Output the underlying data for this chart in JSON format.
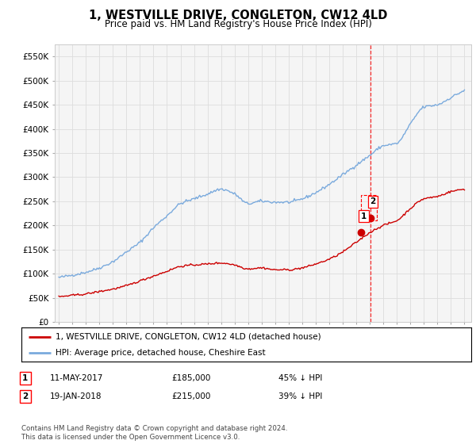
{
  "title": "1, WESTVILLE DRIVE, CONGLETON, CW12 4LD",
  "subtitle": "Price paid vs. HM Land Registry's House Price Index (HPI)",
  "ylim": [
    0,
    575000
  ],
  "yticks": [
    0,
    50000,
    100000,
    150000,
    200000,
    250000,
    300000,
    350000,
    400000,
    450000,
    500000,
    550000
  ],
  "ytick_labels": [
    "£0",
    "£50K",
    "£100K",
    "£150K",
    "£200K",
    "£250K",
    "£300K",
    "£350K",
    "£400K",
    "£450K",
    "£500K",
    "£550K"
  ],
  "background_color": "#ffffff",
  "plot_bg_color": "#f5f5f5",
  "grid_color": "#dddddd",
  "red_line_color": "#cc0000",
  "blue_line_color": "#7aaadd",
  "legend_label_red": "1, WESTVILLE DRIVE, CONGLETON, CW12 4LD (detached house)",
  "legend_label_blue": "HPI: Average price, detached house, Cheshire East",
  "t1_year": 2017.37,
  "t1_price": 185000,
  "t1_date_str": "11-MAY-2017",
  "t1_pct": "45% ↓ HPI",
  "t2_year": 2018.05,
  "t2_price": 215000,
  "t2_date_str": "19-JAN-2018",
  "t2_pct": "39% ↓ HPI",
  "footer_text": "Contains HM Land Registry data © Crown copyright and database right 2024.\nThis data is licensed under the Open Government Licence v3.0.",
  "xstart_year": 1995,
  "xend_year": 2025,
  "hpi_control_years": [
    1995,
    1996,
    1997,
    1998,
    1999,
    2000,
    2001,
    2002,
    2003,
    2004,
    2005,
    2006,
    2007,
    2008,
    2009,
    2010,
    2011,
    2012,
    2013,
    2014,
    2015,
    2016,
    2017,
    2018,
    2019,
    2020,
    2021,
    2022,
    2023,
    2024,
    2025
  ],
  "hpi_control_vals": [
    92000,
    97000,
    103000,
    112000,
    125000,
    145000,
    165000,
    195000,
    220000,
    245000,
    255000,
    265000,
    275000,
    265000,
    245000,
    250000,
    248000,
    248000,
    255000,
    268000,
    285000,
    305000,
    325000,
    345000,
    365000,
    370000,
    410000,
    445000,
    450000,
    465000,
    480000
  ],
  "red_control_years": [
    1995,
    1996,
    1997,
    1998,
    1999,
    2000,
    2001,
    2002,
    2003,
    2004,
    2005,
    2006,
    2007,
    2008,
    2009,
    2010,
    2011,
    2012,
    2013,
    2014,
    2015,
    2016,
    2017,
    2018,
    2019,
    2020,
    2021,
    2022,
    2023,
    2024,
    2025
  ],
  "red_control_vals": [
    52000,
    55000,
    58000,
    63000,
    68000,
    75000,
    85000,
    95000,
    105000,
    115000,
    118000,
    120000,
    122000,
    118000,
    110000,
    112000,
    108000,
    108000,
    112000,
    120000,
    130000,
    145000,
    165000,
    185000,
    200000,
    210000,
    235000,
    255000,
    260000,
    270000,
    275000
  ]
}
